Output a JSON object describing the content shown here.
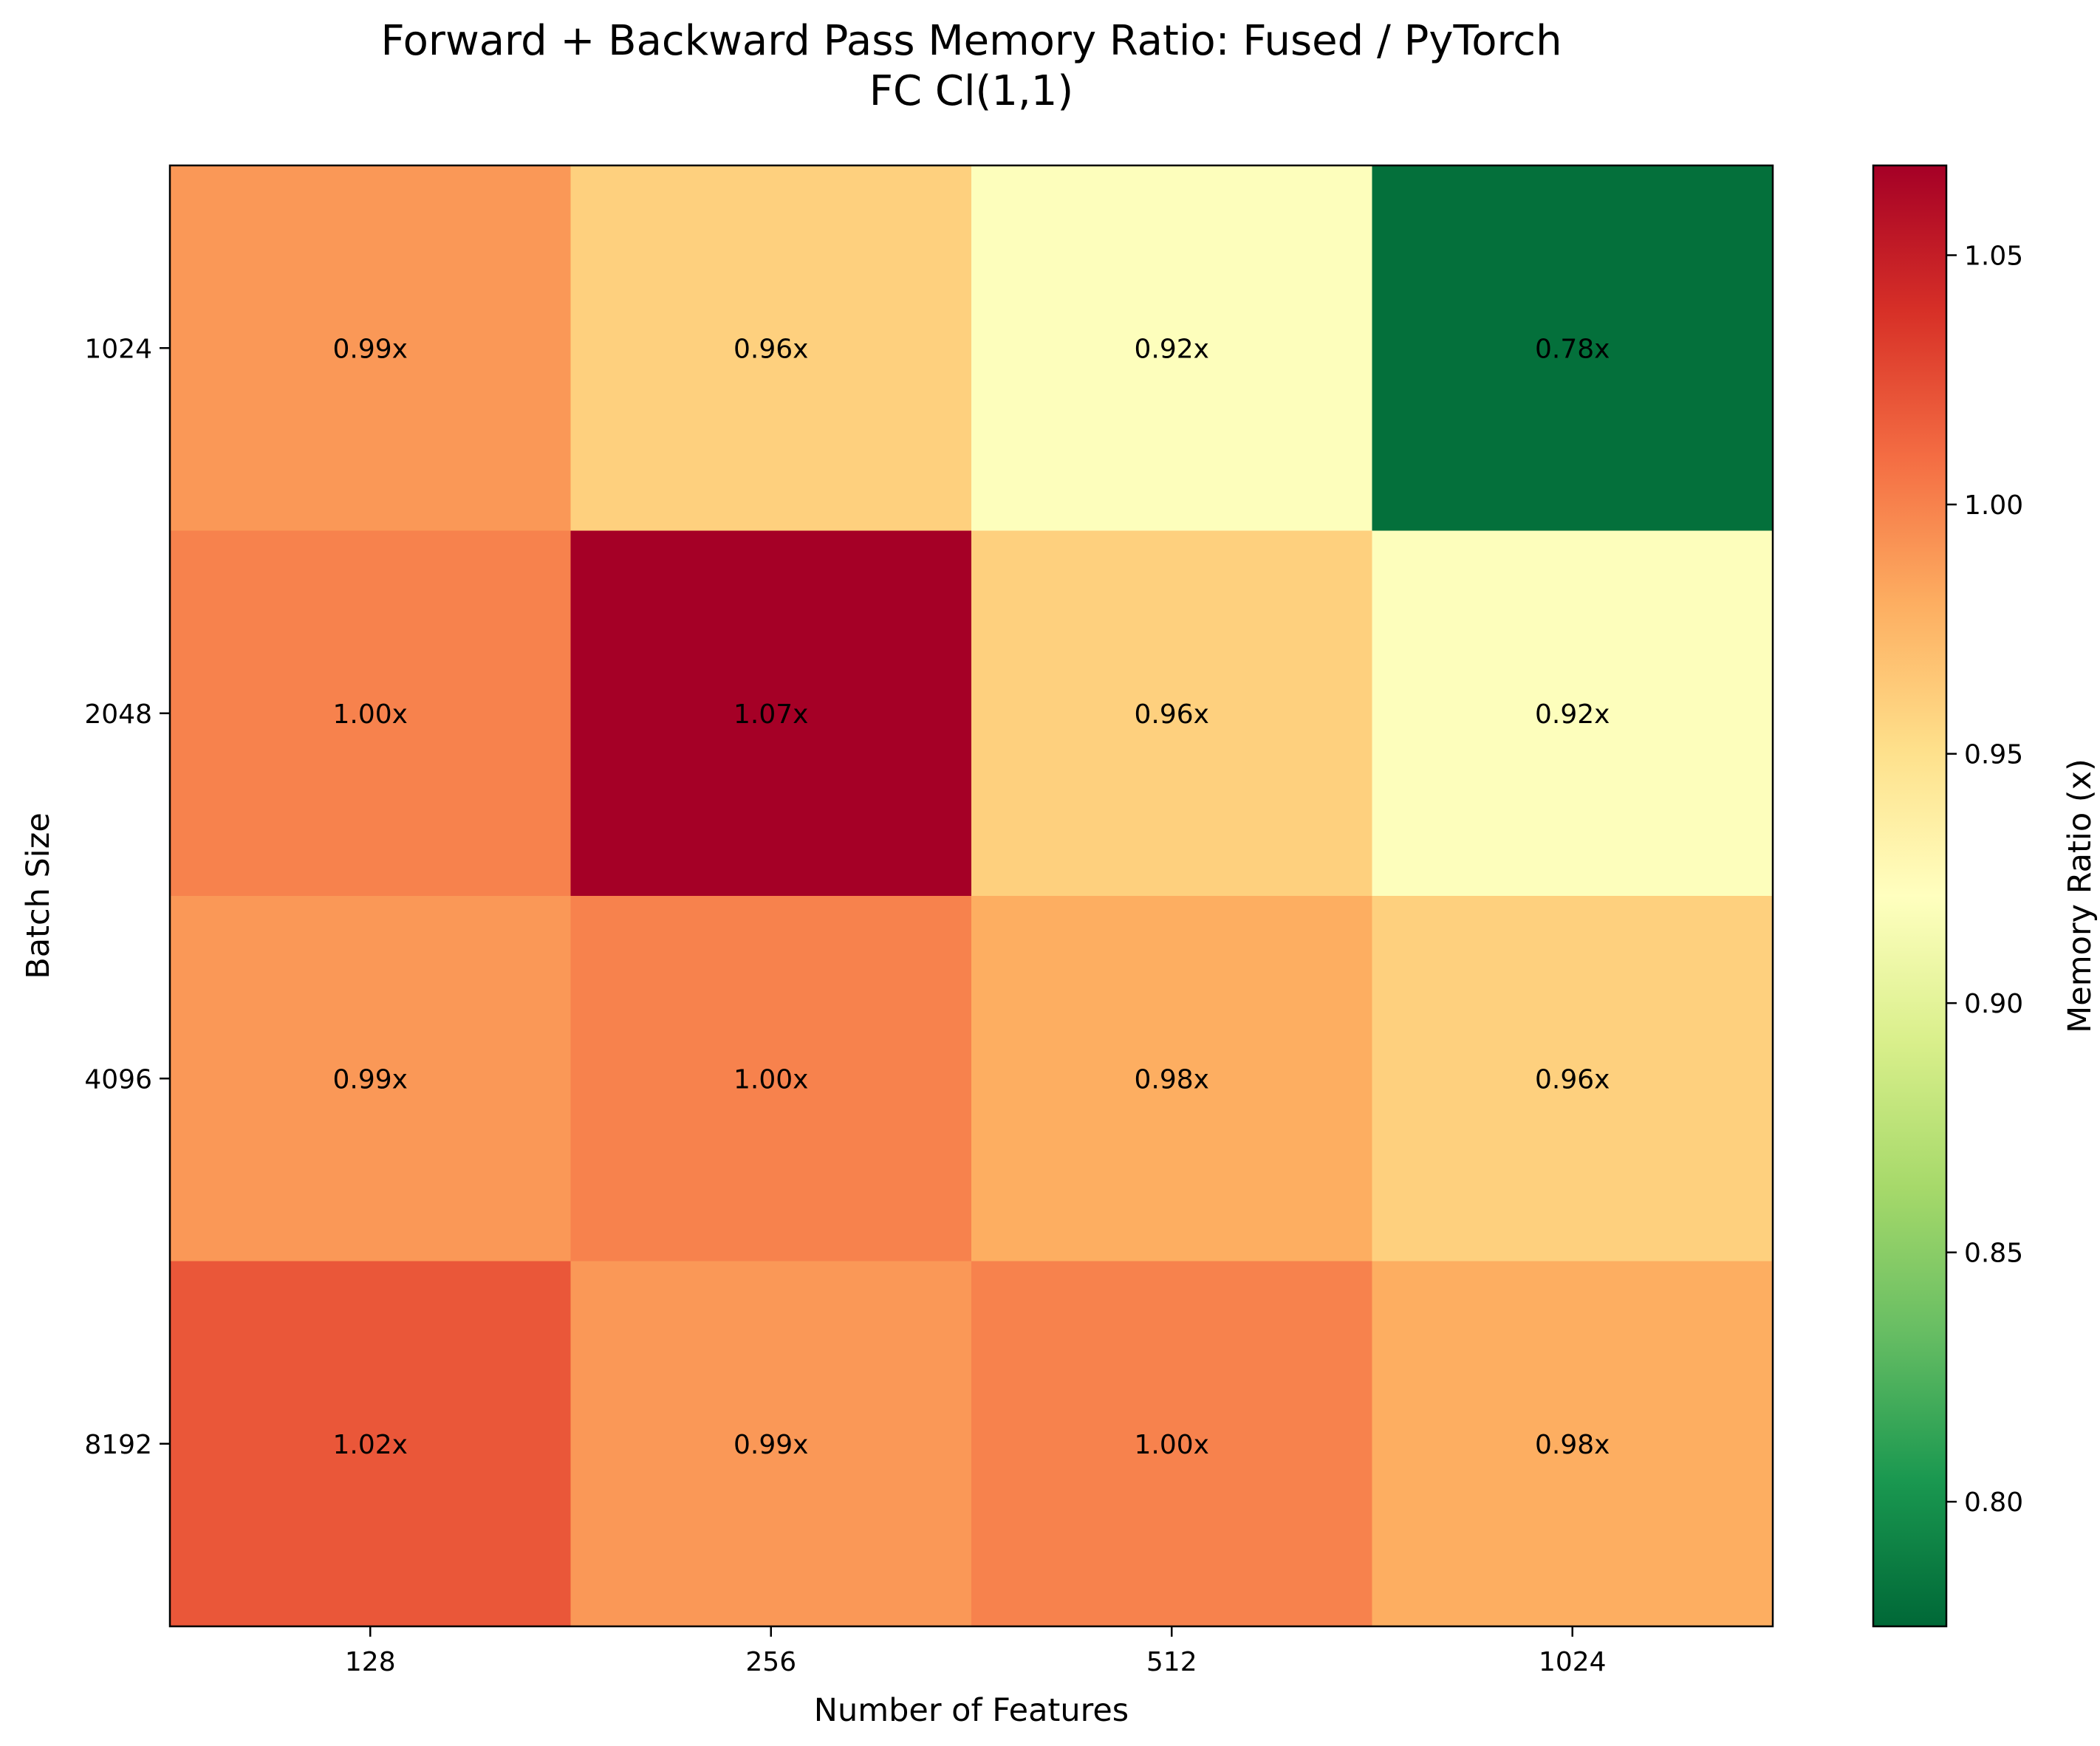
{
  "chart_data": {
    "type": "heatmap",
    "title_lines": [
      "Forward + Backward Pass Memory Ratio: Fused / PyTorch",
      "FC Cl(1,1)"
    ],
    "xlabel": "Number of Features",
    "ylabel": "Batch Size",
    "x_categories": [
      "128",
      "256",
      "512",
      "1024"
    ],
    "y_categories": [
      "1024",
      "2048",
      "4096",
      "8192"
    ],
    "values": [
      [
        0.99,
        0.96,
        0.92,
        0.78
      ],
      [
        1.0,
        1.07,
        0.96,
        0.92
      ],
      [
        0.99,
        1.0,
        0.98,
        0.96
      ],
      [
        1.02,
        0.99,
        1.0,
        0.98
      ]
    ],
    "cell_labels": [
      [
        "0.99x",
        "0.96x",
        "0.92x",
        "0.78x"
      ],
      [
        "1.00x",
        "1.07x",
        "0.96x",
        "0.92x"
      ],
      [
        "0.99x",
        "1.00x",
        "0.98x",
        "0.96x"
      ],
      [
        "1.02x",
        "0.99x",
        "1.00x",
        "0.98x"
      ]
    ],
    "colormap": "RdYlGn_r",
    "colorbar": {
      "label": "Memory Ratio (x)",
      "range": [
        0.775,
        1.068
      ],
      "ticks": [
        "0.80",
        "0.85",
        "0.90",
        "0.95",
        "1.00",
        "1.05"
      ]
    }
  }
}
